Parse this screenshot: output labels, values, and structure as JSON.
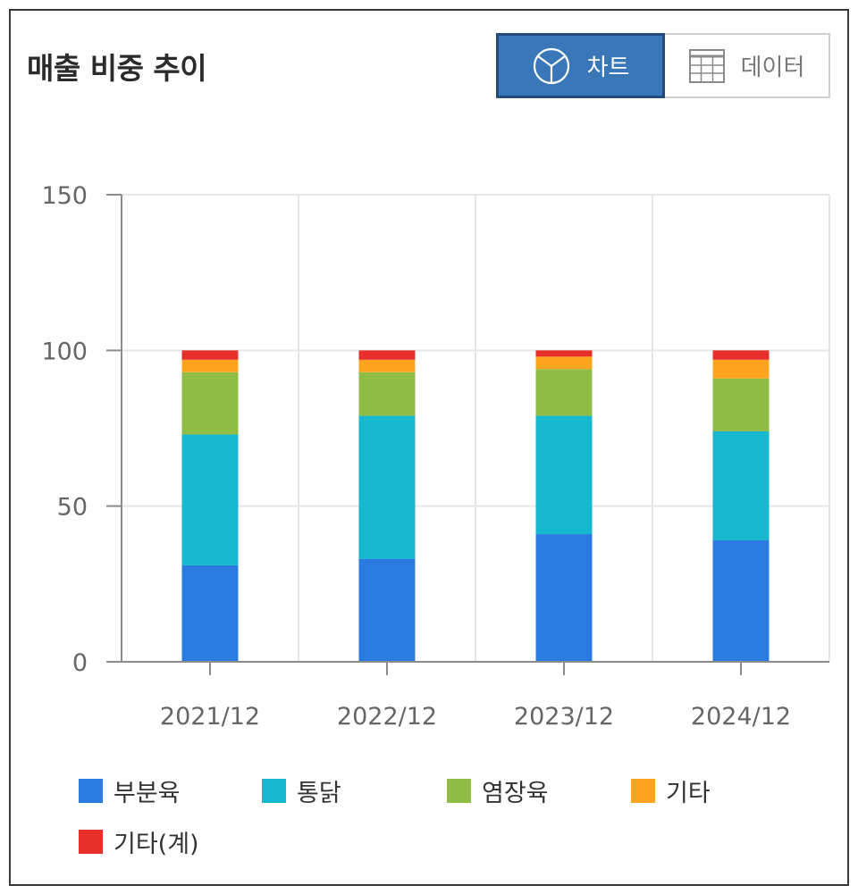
{
  "header": {
    "title": "매출 비중 추이",
    "toggle": {
      "chart_label": "차트",
      "data_label": "데이터",
      "selected": "chart"
    }
  },
  "chart_data": {
    "type": "bar",
    "stacked": true,
    "categories": [
      "2021/12",
      "2022/12",
      "2023/12",
      "2024/12"
    ],
    "yticks": [
      "0",
      "50",
      "100",
      "150"
    ],
    "ylim": [
      0,
      150
    ],
    "grid": true,
    "legend_position": "bottom",
    "series": [
      {
        "name": "부분육",
        "color": "#2a7be0",
        "values": [
          31,
          33,
          41,
          39
        ]
      },
      {
        "name": "통닭",
        "color": "#15b8cf",
        "values": [
          42,
          46,
          38,
          35
        ]
      },
      {
        "name": "염장육",
        "color": "#8fbc44",
        "values": [
          20,
          14,
          15,
          17
        ]
      },
      {
        "name": "기타",
        "color": "#ffa41f",
        "values": [
          4,
          4,
          4,
          6
        ]
      },
      {
        "name": "기타(계)",
        "color": "#e7302a",
        "values": [
          3,
          3,
          2,
          3
        ]
      }
    ]
  }
}
